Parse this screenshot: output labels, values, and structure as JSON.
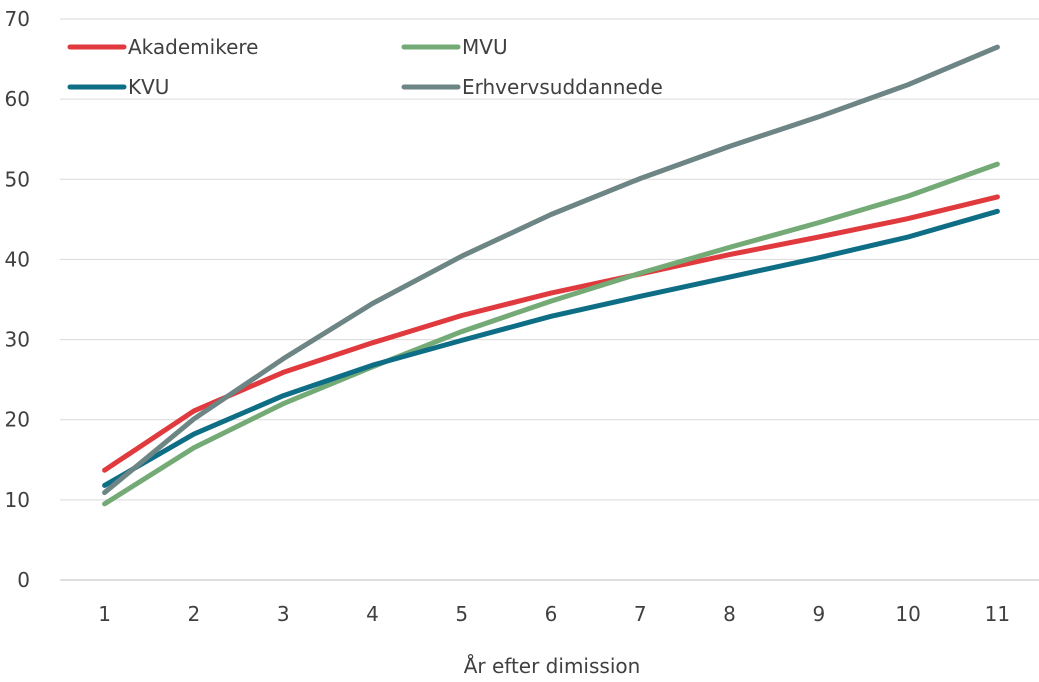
{
  "chart_data": {
    "type": "line",
    "title": "",
    "xlabel": "År efter dimission",
    "ylabel": "",
    "categories": [
      "1",
      "2",
      "3",
      "4",
      "5",
      "6",
      "7",
      "8",
      "9",
      "10",
      "11"
    ],
    "ylim": [
      0,
      70
    ],
    "yticks": [
      0,
      10,
      20,
      30,
      40,
      50,
      60,
      70
    ],
    "grid": true,
    "legend_position": "top-left",
    "series": [
      {
        "name": "Akademikere",
        "color": "#e03a3e",
        "values": [
          13.7,
          21.1,
          25.9,
          29.6,
          33.0,
          35.8,
          38.2,
          40.6,
          42.8,
          45.1,
          47.8
        ]
      },
      {
        "name": "MVU",
        "color": "#74aa76",
        "values": [
          9.5,
          16.5,
          22.0,
          26.6,
          31.0,
          34.8,
          38.3,
          41.5,
          44.6,
          47.9,
          51.9
        ]
      },
      {
        "name": "KVU",
        "color": "#0e6e86",
        "values": [
          11.8,
          18.2,
          23.0,
          26.8,
          29.9,
          32.9,
          35.4,
          37.8,
          40.2,
          42.8,
          46.0
        ]
      },
      {
        "name": "Erhvervsuddannede",
        "color": "#6e8585",
        "values": [
          10.9,
          20.1,
          27.6,
          34.5,
          40.4,
          45.6,
          50.1,
          54.1,
          57.8,
          61.8,
          66.5
        ]
      }
    ]
  }
}
